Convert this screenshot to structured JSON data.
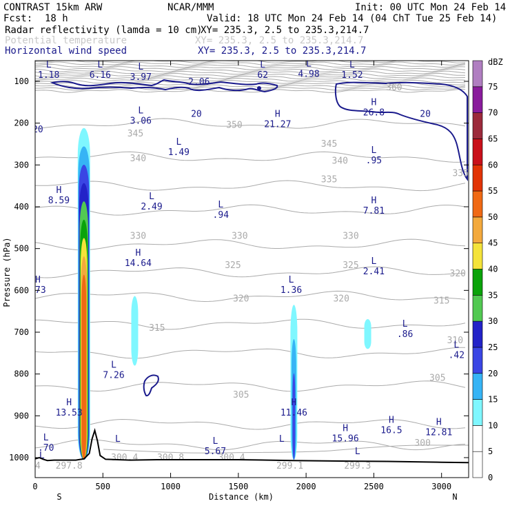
{
  "header": {
    "model": "CONTRAST 15km ARW",
    "org": "NCAR/MMM",
    "init": "Init: 00 UTC Mon 24 Feb 14",
    "fcst_label": "Fcst:",
    "fcst_value": "18 h",
    "valid": "Valid: 18 UTC Mon 24 Feb 14 (04 ChT Tue 25 Feb 14)",
    "fields": [
      {
        "name": "Radar reflectivity (lamda = 10 cm)",
        "xy": "XY= 235.3,  2.5 to 235.3,214.7"
      },
      {
        "name": "Potential temperature",
        "xy": "XY= 235.3,  2.5 to 235.3,214.7"
      },
      {
        "name": "Horizontal wind speed",
        "xy": "XY= 235.3,  2.5 to 235.3,214.7"
      }
    ]
  },
  "colors": {
    "wind": "#1a1a8c",
    "theta": "#aaaaaa",
    "terrain": "#000000",
    "header_gray": "#c8c8c8"
  },
  "chart_data": {
    "type": "cross-section",
    "title": "Radar reflectivity, potential temperature and horizontal wind speed cross section",
    "xlabel": "Distance (km)",
    "ylabel": "Pressure (hPa)",
    "xlim": [
      0,
      3200
    ],
    "ylim": [
      1050,
      50
    ],
    "x_ticks": [
      0,
      500,
      1000,
      1500,
      2000,
      2500,
      3000
    ],
    "y_ticks": [
      100,
      200,
      300,
      400,
      500,
      600,
      700,
      800,
      900,
      1000
    ],
    "x_end_labels": {
      "left": "S",
      "right": "N"
    },
    "colorbar": {
      "units": "dBZ",
      "levels": [
        0,
        5,
        10,
        15,
        20,
        25,
        30,
        35,
        40,
        45,
        50,
        55,
        60,
        65,
        70,
        75
      ],
      "colors": [
        "#ffffff",
        "#ffffff",
        "#7ff7ff",
        "#36b4f5",
        "#3a46e4",
        "#2323c8",
        "#52c952",
        "#0aa30a",
        "#f4e33a",
        "#f3a93c",
        "#f06914",
        "#e23305",
        "#c9101a",
        "#9c2a3b",
        "#8a1c9c",
        "#b07ec1"
      ]
    },
    "reflectivity_cells": [
      {
        "center_km": 360,
        "top_hpa": 170,
        "bottom_hpa": 1005,
        "max_dbz": 50
      },
      {
        "center_km": 1910,
        "top_hpa": 615,
        "bottom_hpa": 1005,
        "max_dbz": 20
      },
      {
        "center_km": 735,
        "top_hpa": 605,
        "bottom_hpa": 780,
        "max_dbz": 10
      },
      {
        "center_km": 2455,
        "top_hpa": 665,
        "bottom_hpa": 740,
        "max_dbz": 10
      }
    ],
    "theta_labels": [
      {
        "km": 2650,
        "hpa": 115,
        "text": "360"
      },
      {
        "km": 1470,
        "hpa": 205,
        "text": "350"
      },
      {
        "km": 740,
        "hpa": 225,
        "text": "345"
      },
      {
        "km": 2170,
        "hpa": 250,
        "text": "345"
      },
      {
        "km": 760,
        "hpa": 285,
        "text": "340"
      },
      {
        "km": 2250,
        "hpa": 290,
        "text": "340"
      },
      {
        "km": 3140,
        "hpa": 320,
        "text": "335"
      },
      {
        "km": 2170,
        "hpa": 335,
        "text": "335"
      },
      {
        "km": 760,
        "hpa": 470,
        "text": "330"
      },
      {
        "km": 1510,
        "hpa": 470,
        "text": "330"
      },
      {
        "km": 2330,
        "hpa": 470,
        "text": "330"
      },
      {
        "km": 1460,
        "hpa": 540,
        "text": "325"
      },
      {
        "km": 2330,
        "hpa": 540,
        "text": "325"
      },
      {
        "km": 3120,
        "hpa": 560,
        "text": "320"
      },
      {
        "km": 1520,
        "hpa": 620,
        "text": "320"
      },
      {
        "km": 2260,
        "hpa": 620,
        "text": "320"
      },
      {
        "km": 900,
        "hpa": 690,
        "text": "315"
      },
      {
        "km": 3000,
        "hpa": 625,
        "text": "315"
      },
      {
        "km": 3100,
        "hpa": 720,
        "text": "310"
      },
      {
        "km": 2970,
        "hpa": 810,
        "text": "305"
      },
      {
        "km": 1520,
        "hpa": 850,
        "text": "305"
      },
      {
        "km": 2860,
        "hpa": 965,
        "text": "300"
      },
      {
        "km": 1000,
        "hpa": 1000,
        "text": "300.8"
      },
      {
        "km": 1450,
        "hpa": 1000,
        "text": "300.4"
      },
      {
        "km": 660,
        "hpa": 1000,
        "text": "300.4"
      },
      {
        "km": 250,
        "hpa": 1020,
        "text": "297.8"
      },
      {
        "km": 1880,
        "hpa": 1020,
        "text": "299.1"
      },
      {
        "km": 2380,
        "hpa": 1020,
        "text": "299.3"
      },
      {
        "km": 20,
        "hpa": 1020,
        "text": "4"
      }
    ],
    "wind_labels": [
      {
        "km": 1210,
        "hpa": 102,
        "text": "2.06"
      },
      {
        "km": 1190,
        "hpa": 178,
        "text": "20"
      },
      {
        "km": 2880,
        "hpa": 178,
        "text": "20"
      },
      {
        "km": 20,
        "hpa": 215,
        "text": "20"
      }
    ],
    "extrema": [
      {
        "kind": "L",
        "value": "1.18",
        "km": 100,
        "hpa": 70
      },
      {
        "kind": "L",
        "value": "6.16",
        "km": 480,
        "hpa": 70
      },
      {
        "kind": "L",
        "value": "3.97",
        "km": 780,
        "hpa": 75
      },
      {
        "kind": "L",
        "value": "62",
        "km": 1680,
        "hpa": 70
      },
      {
        "kind": "L",
        "value": "4.98",
        "km": 2020,
        "hpa": 68
      },
      {
        "kind": "L",
        "value": "1.52",
        "km": 2340,
        "hpa": 70
      },
      {
        "kind": "H",
        "value": "26.8",
        "km": 2500,
        "hpa": 160
      },
      {
        "kind": "L",
        "value": "3.06",
        "km": 780,
        "hpa": 180
      },
      {
        "kind": "H",
        "value": "21.27",
        "km": 1790,
        "hpa": 188
      },
      {
        "kind": "L",
        "value": "1.49",
        "km": 1060,
        "hpa": 255
      },
      {
        "kind": "L",
        "value": ".95",
        "km": 2500,
        "hpa": 275
      },
      {
        "kind": "H",
        "value": "8.59",
        "km": 175,
        "hpa": 370
      },
      {
        "kind": "L",
        "value": "2.49",
        "km": 860,
        "hpa": 385
      },
      {
        "kind": "L",
        "value": ".94",
        "km": 1370,
        "hpa": 405
      },
      {
        "kind": "H",
        "value": "7.81",
        "km": 2500,
        "hpa": 395
      },
      {
        "kind": "H",
        "value": "14.64",
        "km": 760,
        "hpa": 520
      },
      {
        "kind": "L",
        "value": "2.41",
        "km": 2500,
        "hpa": 540
      },
      {
        "kind": "L",
        "value": "1.36",
        "km": 1890,
        "hpa": 585
      },
      {
        "kind": "H",
        "value": ".73",
        "km": 20,
        "hpa": 585
      },
      {
        "kind": "L",
        "value": ".86",
        "km": 2730,
        "hpa": 690
      },
      {
        "kind": "L",
        "value": ".42",
        "km": 3110,
        "hpa": 740
      },
      {
        "kind": "L",
        "value": "7.26",
        "km": 580,
        "hpa": 788
      },
      {
        "kind": "H",
        "value": "13.53",
        "km": 250,
        "hpa": 878
      },
      {
        "kind": "H",
        "value": "11.46",
        "km": 1910,
        "hpa": 878
      },
      {
        "kind": "H",
        "value": "16.5",
        "km": 2630,
        "hpa": 920
      },
      {
        "kind": "H",
        "value": "12.81",
        "km": 2980,
        "hpa": 925
      },
      {
        "kind": "H",
        "value": "15.96",
        "km": 2290,
        "hpa": 940
      },
      {
        "kind": "L",
        "value": ".70",
        "km": 80,
        "hpa": 962
      },
      {
        "kind": "L",
        "value": "5.67",
        "km": 1330,
        "hpa": 970
      },
      {
        "kind": "L",
        "value": "",
        "km": 610,
        "hpa": 965
      },
      {
        "kind": "L",
        "value": "",
        "km": 1820,
        "hpa": 965
      },
      {
        "kind": "L",
        "value": "",
        "km": 2380,
        "hpa": 995
      },
      {
        "kind": "L",
        "value": "",
        "km": 50,
        "hpa": 1005
      }
    ]
  }
}
